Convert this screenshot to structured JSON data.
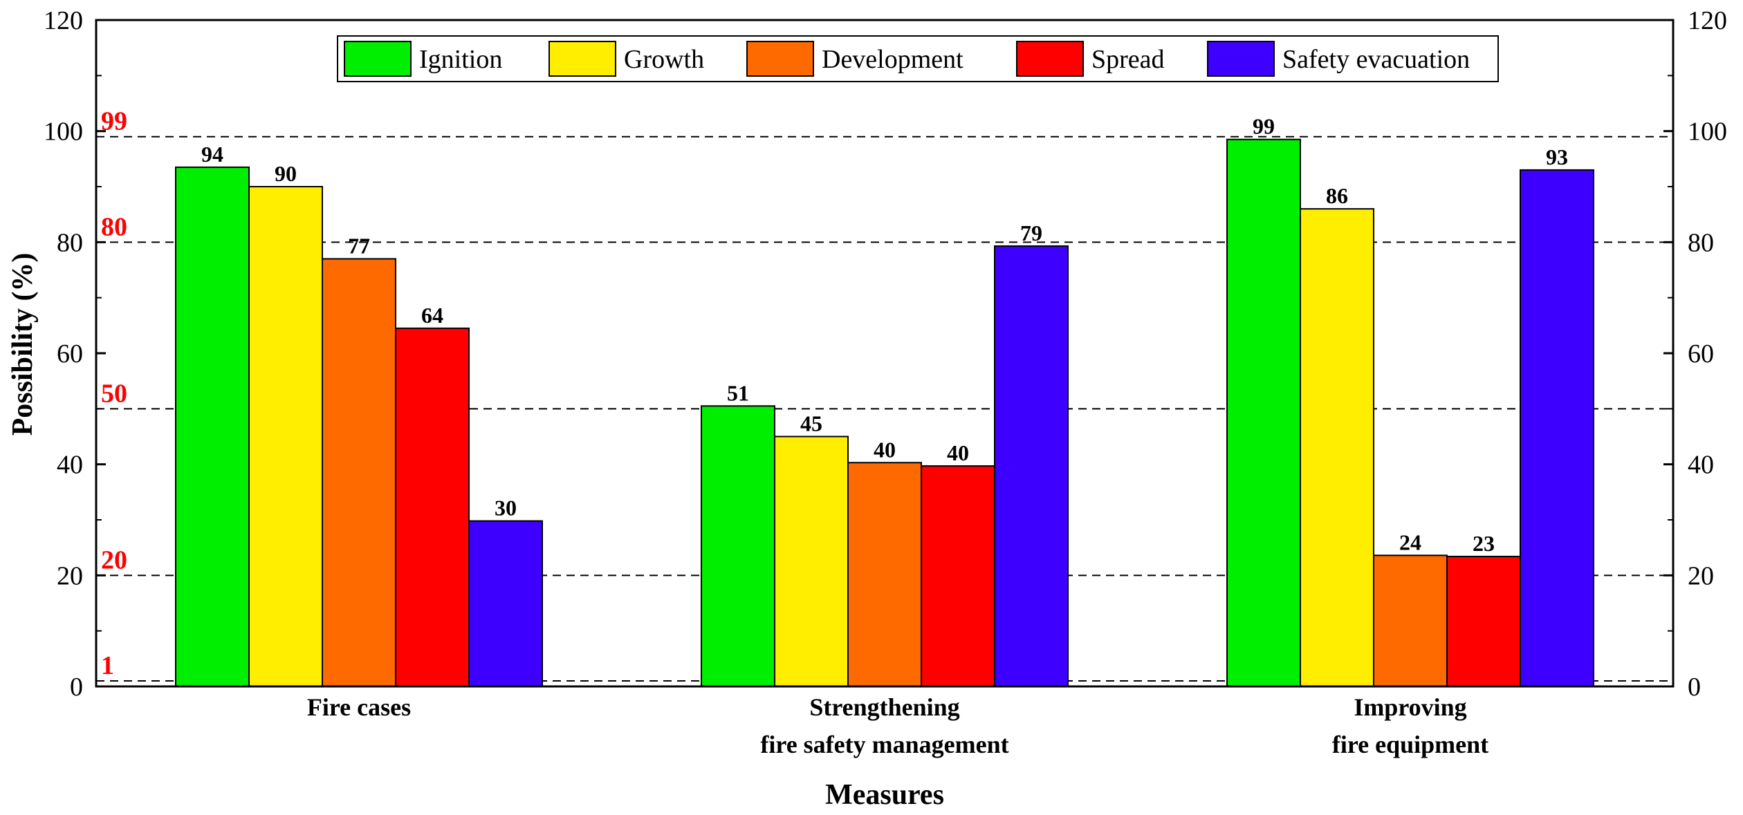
{
  "chart_data": {
    "type": "bar",
    "title": "",
    "xlabel": "Measures",
    "ylabel": "Possibility (%)",
    "ylim": [
      0,
      120
    ],
    "yticks": [
      0,
      20,
      40,
      60,
      80,
      100,
      120
    ],
    "right_axis_mirrored": true,
    "grid": false,
    "legend_position": "top-center",
    "categories": [
      [
        "Fire cases"
      ],
      [
        "Strengthening",
        "fire safety management"
      ],
      [
        "Improving",
        "fire equipment"
      ]
    ],
    "series": [
      {
        "name": "Ignition",
        "color": "#00ee00",
        "values": [
          93.5,
          50.5,
          98.5
        ],
        "labels": [
          "94",
          "51",
          "99"
        ]
      },
      {
        "name": "Growth",
        "color": "#ffee00",
        "values": [
          90,
          45,
          86
        ],
        "labels": [
          "90",
          "45",
          "86"
        ]
      },
      {
        "name": "Development",
        "color": "#ff6a00",
        "values": [
          77,
          40.3,
          23.6
        ],
        "labels": [
          "77",
          "40",
          "24"
        ]
      },
      {
        "name": "Spread",
        "color": "#ff0000",
        "values": [
          64.5,
          39.7,
          23.4
        ],
        "labels": [
          "64",
          "40",
          "23"
        ]
      },
      {
        "name": "Safety evacuation",
        "color": "#3d00ff",
        "values": [
          29.8,
          79.3,
          93
        ],
        "labels": [
          "30",
          "79",
          "93"
        ]
      }
    ],
    "reference_lines": [
      {
        "value": 99,
        "label": "99"
      },
      {
        "value": 80,
        "label": "80"
      },
      {
        "value": 50,
        "label": "50"
      },
      {
        "value": 20,
        "label": "20"
      },
      {
        "value": 1,
        "label": "1"
      }
    ],
    "reference_label_color": "#ff0000"
  }
}
